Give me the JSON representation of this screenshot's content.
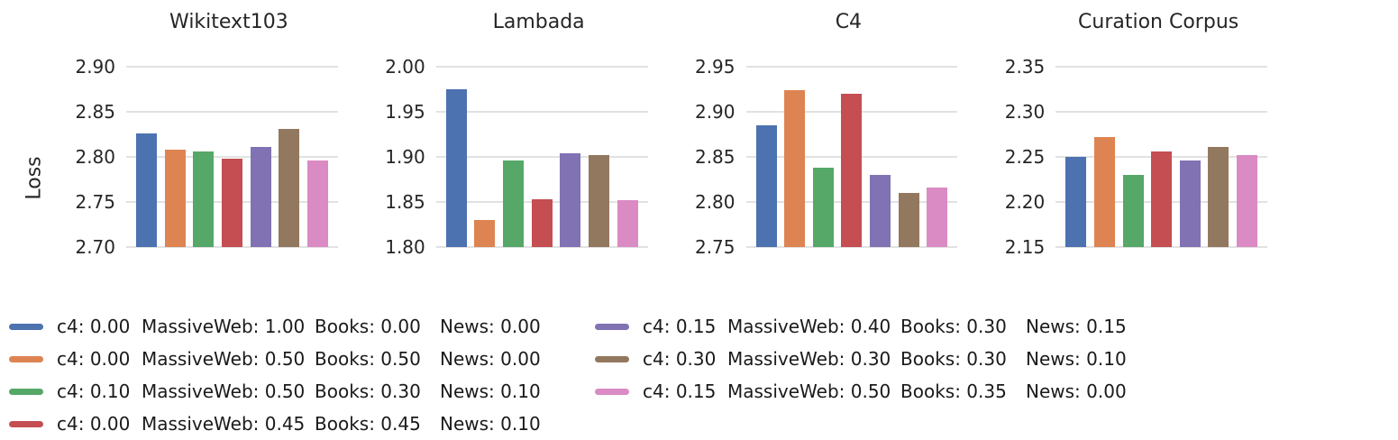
{
  "figure": {
    "ylabel": "Loss",
    "palette": [
      "#4C72B0",
      "#DD8452",
      "#55A868",
      "#C44E52",
      "#8172B3",
      "#937860",
      "#DA8BC3"
    ],
    "grid_color": "#e2e2e2"
  },
  "chart_data": [
    {
      "type": "bar",
      "title": "Wikitext103",
      "ylabel": "Loss",
      "ylim": [
        2.7,
        2.9
      ],
      "yticks": [
        2.9,
        2.85,
        2.8,
        2.75,
        2.7
      ],
      "values": [
        2.826,
        2.808,
        2.806,
        2.798,
        2.811,
        2.831,
        2.796
      ]
    },
    {
      "type": "bar",
      "title": "Lambada",
      "ylim": [
        1.8,
        2.0
      ],
      "yticks": [
        2.0,
        1.95,
        1.9,
        1.85,
        1.8
      ],
      "values": [
        1.975,
        1.83,
        1.896,
        1.853,
        1.904,
        1.902,
        1.852
      ]
    },
    {
      "type": "bar",
      "title": "C4",
      "ylim": [
        2.75,
        2.95
      ],
      "yticks": [
        2.95,
        2.9,
        2.85,
        2.8,
        2.75
      ],
      "values": [
        2.885,
        2.924,
        2.838,
        2.92,
        2.83,
        2.81,
        2.816
      ]
    },
    {
      "type": "bar",
      "title": "Curation Corpus",
      "ylim": [
        2.15,
        2.35
      ],
      "yticks": [
        2.35,
        2.3,
        2.25,
        2.2,
        2.15
      ],
      "values": [
        2.25,
        2.272,
        2.23,
        2.256,
        2.246,
        2.261,
        2.252
      ]
    }
  ],
  "legend": {
    "columns": [
      [
        0,
        1,
        2,
        3
      ],
      [
        4,
        5,
        6
      ]
    ],
    "entries": [
      {
        "color": "#4C72B0",
        "parts": [
          "c4: 0.00",
          "MassiveWeb: 1.00",
          "Books: 0.00",
          "News: 0.00"
        ]
      },
      {
        "color": "#DD8452",
        "parts": [
          "c4: 0.00",
          "MassiveWeb: 0.50",
          "Books: 0.50",
          "News: 0.00"
        ]
      },
      {
        "color": "#55A868",
        "parts": [
          "c4: 0.10",
          "MassiveWeb: 0.50",
          "Books: 0.30",
          "News: 0.10"
        ]
      },
      {
        "color": "#C44E52",
        "parts": [
          "c4: 0.00",
          "MassiveWeb: 0.45",
          "Books: 0.45",
          "News: 0.10"
        ]
      },
      {
        "color": "#8172B3",
        "parts": [
          "c4: 0.15",
          "MassiveWeb: 0.40",
          "Books: 0.30",
          "News: 0.15"
        ]
      },
      {
        "color": "#937860",
        "parts": [
          "c4: 0.30",
          "MassiveWeb: 0.30",
          "Books: 0.30",
          "News: 0.10"
        ]
      },
      {
        "color": "#DA8BC3",
        "parts": [
          "c4: 0.15",
          "MassiveWeb: 0.50",
          "Books: 0.35",
          "News: 0.00"
        ]
      }
    ]
  }
}
